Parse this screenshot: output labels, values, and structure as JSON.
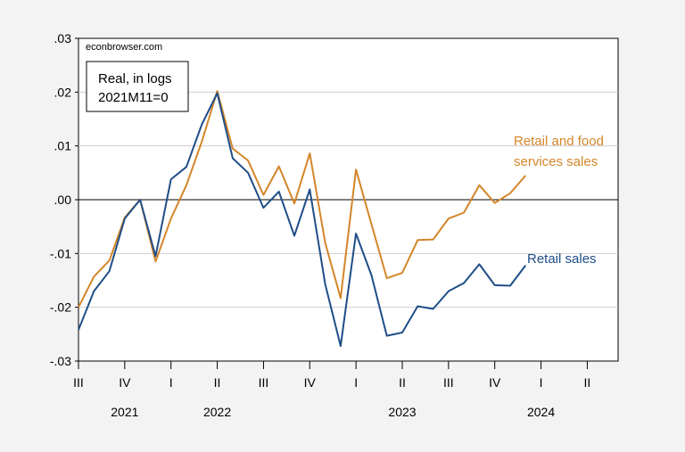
{
  "chart_data": {
    "type": "line",
    "watermark": "econbrowser.com",
    "note_lines": [
      "Real, in logs",
      "2021M11=0"
    ],
    "y_ticks": [
      ".03",
      ".02",
      ".01",
      ".00",
      "-.01",
      "-.02",
      "-.03"
    ],
    "y_tick_values": [
      0.03,
      0.02,
      0.01,
      0.0,
      -0.01,
      -0.02,
      -0.03
    ],
    "ylim": [
      -0.03,
      0.03
    ],
    "grid": true,
    "zero_line": true,
    "x_start": "2021M07",
    "x_end": "2024M06",
    "quarter_ticks": [
      {
        "label": "III",
        "month": "2021M07"
      },
      {
        "label": "IV",
        "month": "2021M10"
      },
      {
        "label": "I",
        "month": "2022M01"
      },
      {
        "label": "II",
        "month": "2022M04"
      },
      {
        "label": "III",
        "month": "2022M07"
      },
      {
        "label": "IV",
        "month": "2022M10"
      },
      {
        "label": "I",
        "month": "2023M01"
      },
      {
        "label": "II",
        "month": "2023M04"
      },
      {
        "label": "III",
        "month": "2023M07"
      },
      {
        "label": "IV",
        "month": "2023M10"
      },
      {
        "label": "I",
        "month": "2024M01"
      },
      {
        "label": "II",
        "month": "2024M04"
      }
    ],
    "year_labels": [
      {
        "label": "2021",
        "month": "2021M10"
      },
      {
        "label": "2022",
        "month": "2022M04"
      },
      {
        "label": "2023",
        "month": "2023M04"
      },
      {
        "label": "2024",
        "month": "2024M01"
      }
    ],
    "x": [
      "2021M07",
      "2021M08",
      "2021M09",
      "2021M10",
      "2021M11",
      "2021M12",
      "2022M01",
      "2022M02",
      "2022M03",
      "2022M04",
      "2022M05",
      "2022M06",
      "2022M07",
      "2022M08",
      "2022M09",
      "2022M10",
      "2022M11",
      "2022M12",
      "2023M01",
      "2023M02",
      "2023M03",
      "2023M04",
      "2023M05",
      "2023M06",
      "2023M07",
      "2023M08",
      "2023M09",
      "2023M10",
      "2023M11",
      "2023M12"
    ],
    "series": [
      {
        "name": "Retail and food services sales",
        "label_lines": [
          "Retail and food",
          "services sales"
        ],
        "color": "#d4862a",
        "values": [
          -0.02,
          -0.0143,
          -0.0113,
          -0.0033,
          0.0,
          -0.0115,
          -0.0035,
          0.0027,
          0.0108,
          0.0202,
          0.0095,
          0.0073,
          0.0009,
          0.0062,
          -0.0007,
          0.0086,
          -0.008,
          -0.0183,
          0.0056,
          -0.0045,
          -0.0146,
          -0.0136,
          -0.0075,
          -0.0074,
          -0.0035,
          -0.0024,
          0.0027,
          -0.0006,
          0.0012,
          0.0045
        ]
      },
      {
        "name": "Retail sales",
        "label_lines": [
          "Retail sales"
        ],
        "color": "#1f4e87",
        "values": [
          -0.0242,
          -0.017,
          -0.0133,
          -0.0035,
          0.0,
          -0.0105,
          0.0038,
          0.0061,
          0.014,
          0.0198,
          0.0077,
          0.005,
          -0.0015,
          0.0015,
          -0.0067,
          0.0019,
          -0.0157,
          -0.0272,
          -0.0063,
          -0.014,
          -0.0253,
          -0.0247,
          -0.0198,
          -0.0203,
          -0.017,
          -0.0155,
          -0.012,
          -0.0159,
          -0.016,
          -0.0122
        ]
      }
    ]
  }
}
